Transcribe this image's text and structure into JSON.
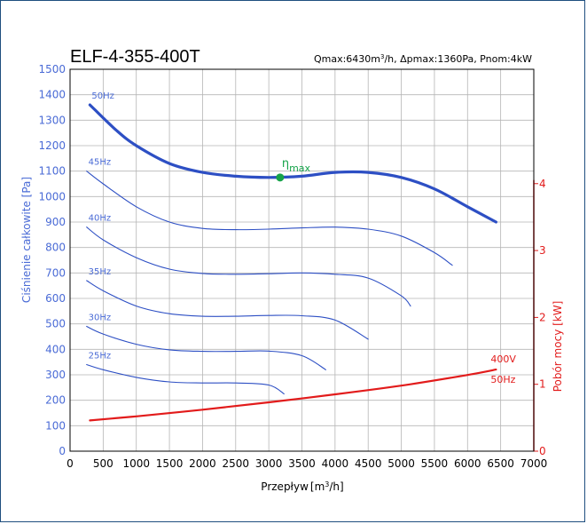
{
  "chart_data": {
    "type": "line",
    "title": "ELF-4-355-400T",
    "spec_text": {
      "q_prefix": "Qmax:6430m",
      "q_sup": "3",
      "q_rest": "/h, Δpmax:1360Pa, Pnom:4kW"
    },
    "xlabel": {
      "main": "Przepływ",
      "unit_open": "[m",
      "unit_sup": "3",
      "unit_close": "/h]"
    },
    "ylabel": "Ciśnienie całkowite [Pa]",
    "y2label": "Pobór mocy [kW]",
    "xlim": [
      0,
      7000
    ],
    "ylim": [
      0,
      1500
    ],
    "y2lim": [
      0,
      5.71
    ],
    "x_ticks": [
      0,
      500,
      1000,
      1500,
      2000,
      2500,
      3000,
      3500,
      4000,
      4500,
      5000,
      5500,
      6000,
      6500,
      7000
    ],
    "y_ticks": [
      0,
      100,
      200,
      300,
      400,
      500,
      600,
      700,
      800,
      900,
      1000,
      1100,
      1200,
      1300,
      1400,
      1500
    ],
    "y2_ticks": [
      0,
      1,
      2,
      3,
      4
    ],
    "grid": true,
    "series": [
      {
        "name": "50Hz",
        "color": "#2d4fc4",
        "bold": true,
        "x": [
          300,
          700,
          1000,
          1500,
          2000,
          2500,
          3000,
          3500,
          4000,
          4500,
          5000,
          5500,
          6000,
          6430
        ],
        "y": [
          1360,
          1260,
          1200,
          1130,
          1095,
          1080,
          1075,
          1080,
          1095,
          1095,
          1075,
          1030,
          960,
          900
        ]
      },
      {
        "name": "45Hz",
        "color": "#2d4fc4",
        "x": [
          250,
          500,
          1000,
          1500,
          2000,
          2500,
          3000,
          3500,
          4000,
          4500,
          5000,
          5500,
          5770
        ],
        "y": [
          1100,
          1050,
          960,
          900,
          875,
          870,
          872,
          877,
          880,
          872,
          845,
          780,
          730
        ]
      },
      {
        "name": "40Hz",
        "color": "#2d4fc4",
        "x": [
          250,
          500,
          1000,
          1500,
          2000,
          2500,
          3000,
          3500,
          4000,
          4500,
          5000,
          5140
        ],
        "y": [
          880,
          830,
          760,
          715,
          698,
          695,
          697,
          700,
          695,
          680,
          610,
          570
        ]
      },
      {
        "name": "35Hz",
        "color": "#2d4fc4",
        "x": [
          250,
          500,
          1000,
          1500,
          2000,
          2500,
          3000,
          3500,
          4000,
          4500
        ],
        "y": [
          670,
          630,
          570,
          540,
          530,
          530,
          533,
          532,
          515,
          440
        ]
      },
      {
        "name": "30Hz",
        "color": "#2d4fc4",
        "x": [
          250,
          500,
          1000,
          1500,
          2000,
          2500,
          3000,
          3500,
          3860
        ],
        "y": [
          490,
          460,
          420,
          398,
          392,
          392,
          393,
          375,
          320
        ]
      },
      {
        "name": "25Hz",
        "color": "#2d4fc4",
        "x": [
          250,
          500,
          1000,
          1500,
          2000,
          2500,
          3000,
          3230
        ],
        "y": [
          340,
          320,
          290,
          272,
          268,
          268,
          260,
          225
        ]
      }
    ],
    "power_series": {
      "name_line1": "400V",
      "name_line2": "50Hz",
      "color": "#e21b1b",
      "x": [
        300,
        1000,
        2000,
        3000,
        4000,
        5000,
        6000,
        6430
      ],
      "y_kw": [
        0.46,
        0.52,
        0.62,
        0.73,
        0.85,
        0.98,
        1.14,
        1.22
      ]
    },
    "eta_max": {
      "label": "η",
      "sub": "max",
      "x": 3170,
      "y": 1075,
      "color": "#16a34a"
    }
  }
}
